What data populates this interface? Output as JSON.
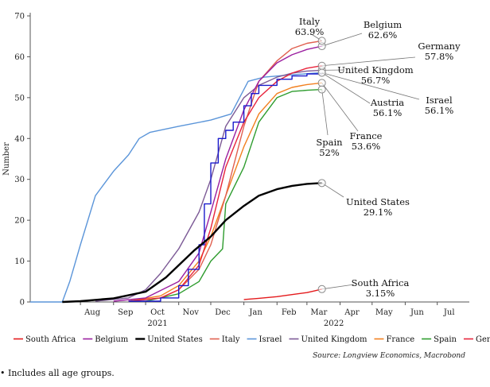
{
  "chart_data": {
    "type": "line",
    "ylabel": "Number",
    "ylim": [
      0,
      70
    ],
    "yticks": [
      0,
      10,
      20,
      30,
      40,
      50,
      60,
      70
    ],
    "xlim": [
      "2021-06-15",
      "2022-07-31"
    ],
    "xticks": [
      {
        "date": "2021-08-01",
        "label": "Aug"
      },
      {
        "date": "2021-09-01",
        "label": "Sep"
      },
      {
        "date": "2021-10-01",
        "label": "Oct"
      },
      {
        "date": "2021-11-01",
        "label": "Nov"
      },
      {
        "date": "2021-12-01",
        "label": "Dec"
      },
      {
        "date": "2022-01-01",
        "label": "Jan"
      },
      {
        "date": "2022-02-01",
        "label": "Feb"
      },
      {
        "date": "2022-03-01",
        "label": "Mar"
      },
      {
        "date": "2022-04-01",
        "label": "Apr"
      },
      {
        "date": "2022-05-01",
        "label": "May"
      },
      {
        "date": "2022-06-01",
        "label": "Jun"
      },
      {
        "date": "2022-07-01",
        "label": "Jul"
      }
    ],
    "year_labels": [
      {
        "date": "2021-10-01",
        "label": "2021"
      },
      {
        "date": "2022-03-15",
        "label": "2022"
      }
    ],
    "grid": false,
    "legend_position": "bottom",
    "source": "Source: Longview Economics, Macrobond",
    "series": [
      {
        "name": "South Africa",
        "color": "#e41a1c",
        "width": 1.4,
        "points": [
          [
            "2022-01-01",
            0.6
          ],
          [
            "2022-01-15",
            0.9
          ],
          [
            "2022-02-01",
            1.3
          ],
          [
            "2022-02-15",
            1.8
          ],
          [
            "2022-03-01",
            2.3
          ],
          [
            "2022-03-08",
            2.7
          ],
          [
            "2022-03-15",
            3.15
          ]
        ],
        "end_label": "South Africa",
        "end_value": "3.15%"
      },
      {
        "name": "Belgium",
        "color": "#9b1fa0",
        "width": 1.4,
        "points": [
          [
            "2021-09-01",
            0.2
          ],
          [
            "2021-10-01",
            1
          ],
          [
            "2021-11-01",
            5
          ],
          [
            "2021-11-20",
            12
          ],
          [
            "2021-12-01",
            22
          ],
          [
            "2021-12-15",
            35
          ],
          [
            "2022-01-01",
            47
          ],
          [
            "2022-01-15",
            54
          ],
          [
            "2022-02-01",
            58.5
          ],
          [
            "2022-02-15",
            60.5
          ],
          [
            "2022-03-01",
            61.8
          ],
          [
            "2022-03-15",
            62.6
          ]
        ],
        "end_label": "Belgium",
        "end_value": "62.6%"
      },
      {
        "name": "United States",
        "color": "#000000",
        "width": 2.4,
        "points": [
          [
            "2021-07-15",
            0
          ],
          [
            "2021-08-01",
            0.2
          ],
          [
            "2021-09-01",
            0.9
          ],
          [
            "2021-10-01",
            2.5
          ],
          [
            "2021-10-20",
            6
          ],
          [
            "2021-11-01",
            9
          ],
          [
            "2021-11-15",
            12.5
          ],
          [
            "2021-12-01",
            16
          ],
          [
            "2021-12-15",
            20
          ],
          [
            "2022-01-01",
            23.5
          ],
          [
            "2022-01-15",
            26
          ],
          [
            "2022-02-01",
            27.6
          ],
          [
            "2022-02-15",
            28.4
          ],
          [
            "2022-03-01",
            28.9
          ],
          [
            "2022-03-15",
            29.1
          ]
        ],
        "end_label": "United States",
        "end_value": "29.1%"
      },
      {
        "name": "Italy",
        "color": "#e06050",
        "width": 1.4,
        "points": [
          [
            "2021-09-15",
            0.2
          ],
          [
            "2021-10-15",
            1
          ],
          [
            "2021-11-01",
            3
          ],
          [
            "2021-11-20",
            8
          ],
          [
            "2021-12-01",
            14
          ],
          [
            "2021-12-15",
            26
          ],
          [
            "2022-01-01",
            43
          ],
          [
            "2022-01-15",
            54
          ],
          [
            "2022-02-01",
            59
          ],
          [
            "2022-02-15",
            62
          ],
          [
            "2022-03-01",
            63.3
          ],
          [
            "2022-03-15",
            63.9
          ]
        ],
        "end_label": "Italy",
        "end_value": "63.9%"
      },
      {
        "name": "Israel",
        "color": "#5b95d9",
        "width": 1.4,
        "points": [
          [
            "2021-06-15",
            0
          ],
          [
            "2021-07-15",
            0
          ],
          [
            "2021-07-22",
            5
          ],
          [
            "2021-08-01",
            14
          ],
          [
            "2021-08-15",
            26
          ],
          [
            "2021-09-01",
            32
          ],
          [
            "2021-09-15",
            36
          ],
          [
            "2021-09-25",
            40
          ],
          [
            "2021-10-05",
            41.5
          ],
          [
            "2021-11-01",
            43
          ],
          [
            "2021-12-01",
            44.5
          ],
          [
            "2021-12-20",
            46
          ],
          [
            "2021-12-28",
            50
          ],
          [
            "2022-01-05",
            54
          ],
          [
            "2022-01-20",
            55
          ],
          [
            "2022-02-15",
            55.6
          ],
          [
            "2022-03-15",
            56.1
          ]
        ],
        "end_label": "Israel",
        "end_value": "56.1%"
      },
      {
        "name": "United Kingdom",
        "color": "#7c5a96",
        "width": 1.4,
        "points": [
          [
            "2021-08-15",
            0.2
          ],
          [
            "2021-09-15",
            1
          ],
          [
            "2021-10-01",
            3
          ],
          [
            "2021-10-15",
            7
          ],
          [
            "2021-11-01",
            13
          ],
          [
            "2021-11-20",
            22
          ],
          [
            "2021-12-01",
            30
          ],
          [
            "2021-12-15",
            43
          ],
          [
            "2022-01-01",
            50
          ],
          [
            "2022-01-15",
            53
          ],
          [
            "2022-02-01",
            55
          ],
          [
            "2022-02-15",
            56
          ],
          [
            "2022-03-01",
            56.5
          ],
          [
            "2022-03-15",
            56.7
          ]
        ],
        "end_label": "United Kingdom",
        "end_value": "56.7%"
      },
      {
        "name": "France",
        "color": "#f28020",
        "width": 1.4,
        "points": [
          [
            "2021-09-15",
            0.2
          ],
          [
            "2021-10-15",
            1.5
          ],
          [
            "2021-11-01",
            4
          ],
          [
            "2021-11-20",
            10
          ],
          [
            "2021-12-01",
            16
          ],
          [
            "2021-12-15",
            26
          ],
          [
            "2022-01-01",
            38
          ],
          [
            "2022-01-15",
            46
          ],
          [
            "2022-02-01",
            51
          ],
          [
            "2022-02-15",
            52.5
          ],
          [
            "2022-03-01",
            53.2
          ],
          [
            "2022-03-15",
            53.6
          ]
        ],
        "end_label": "France",
        "end_value": "53.6%"
      },
      {
        "name": "Spain",
        "color": "#2e9c2e",
        "width": 1.4,
        "points": [
          [
            "2021-10-01",
            0.2
          ],
          [
            "2021-11-01",
            2
          ],
          [
            "2021-11-20",
            5
          ],
          [
            "2021-12-01",
            10
          ],
          [
            "2021-12-12",
            13
          ],
          [
            "2021-12-15",
            24
          ],
          [
            "2022-01-01",
            33
          ],
          [
            "2022-01-15",
            44
          ],
          [
            "2022-02-01",
            50
          ],
          [
            "2022-02-15",
            51.5
          ],
          [
            "2022-03-01",
            51.8
          ],
          [
            "2022-03-15",
            52
          ]
        ],
        "end_label": "Spain",
        "end_value": "52%"
      },
      {
        "name": "Germany",
        "color": "#e8243c",
        "width": 1.4,
        "points": [
          [
            "2021-09-15",
            0.2
          ],
          [
            "2021-10-15",
            1
          ],
          [
            "2021-11-01",
            3
          ],
          [
            "2021-11-20",
            9
          ],
          [
            "2021-12-01",
            18
          ],
          [
            "2021-12-15",
            33
          ],
          [
            "2022-01-01",
            44
          ],
          [
            "2022-01-15",
            50
          ],
          [
            "2022-02-01",
            54
          ],
          [
            "2022-02-15",
            56
          ],
          [
            "2022-03-01",
            57.2
          ],
          [
            "2022-03-15",
            57.8
          ]
        ],
        "end_label": "Germany",
        "end_value": "57.8%"
      },
      {
        "name": "Austria",
        "color": "#1a1acc",
        "width": 1.4,
        "step": true,
        "points": [
          [
            "2021-09-15",
            0.2
          ],
          [
            "2021-10-15",
            1
          ],
          [
            "2021-11-01",
            4
          ],
          [
            "2021-11-10",
            8
          ],
          [
            "2021-11-20",
            14
          ],
          [
            "2021-11-25",
            24
          ],
          [
            "2021-12-01",
            34
          ],
          [
            "2021-12-08",
            40
          ],
          [
            "2021-12-15",
            42
          ],
          [
            "2021-12-22",
            44
          ],
          [
            "2022-01-01",
            48
          ],
          [
            "2022-01-08",
            51
          ],
          [
            "2022-01-15",
            53
          ],
          [
            "2022-02-01",
            54.5
          ],
          [
            "2022-02-15",
            55.3
          ],
          [
            "2022-03-01",
            55.8
          ],
          [
            "2022-03-15",
            56.1
          ]
        ],
        "end_label": "Austria",
        "end_value": "56.1%"
      }
    ]
  },
  "footnote": "Includes all age groups."
}
